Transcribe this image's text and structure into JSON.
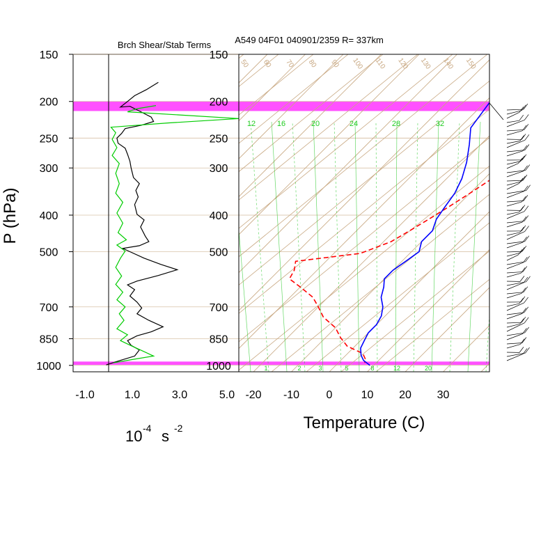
{
  "title": "A549 04F01 040901/2359 R= 337km",
  "left_panel_title": "Brch Shear/Stab Terms",
  "y_axis_label": "P (hPa)",
  "left_x_axis_label": "10",
  "left_x_axis_label_exp": "-4",
  "left_x_axis_label_unit": "s",
  "left_x_axis_label_unit_exp": "-2",
  "right_x_axis_label": "Temperature (C)",
  "colors": {
    "temperature": "#ff0000",
    "dewpoint_or_virtual": "#0000ff",
    "shear": "#000000",
    "stability": "#00cc00",
    "highlight_band": "#ff33ff",
    "skewt_lines": "#c8a882",
    "mixing_ratio": "#33cc33"
  },
  "chart_data": [
    {
      "type": "line",
      "panel": "left",
      "title": "Brch Shear/Stab Terms",
      "xlabel": "10^-4 s^-2",
      "ylabel": "P (hPa)",
      "y_scale": "log",
      "ylim": [
        1040,
        150
      ],
      "xlim": [
        -1.5,
        5.5
      ],
      "x_ticks": [
        "-1.0",
        "1.0",
        "3.0",
        "5.0"
      ],
      "x_tick_values": [
        -1,
        1,
        3,
        5
      ],
      "y_ticks": [
        "150",
        "200",
        "250",
        "300",
        "400",
        "500",
        "700",
        "850",
        "1000"
      ],
      "y_tick_values": [
        150,
        200,
        250,
        300,
        400,
        500,
        700,
        850,
        1000
      ],
      "zero_line": 0,
      "highlight_bands_hpa": [
        [
          200,
          212
        ],
        [
          977,
          997
        ]
      ],
      "series": [
        {
          "key": "shear",
          "color": "#000000",
          "points": [
            [
              2.1,
              178
            ],
            [
              1.6,
              186
            ],
            [
              1.1,
              193
            ],
            [
              0.8,
              200
            ],
            [
              0.5,
              207
            ],
            [
              0.9,
              206
            ],
            [
              1.3,
              212
            ],
            [
              1.8,
              220
            ],
            [
              1.9,
              226
            ],
            [
              1.4,
              231
            ],
            [
              0.7,
              236
            ],
            [
              0.55,
              243
            ],
            [
              0.35,
              250
            ],
            [
              0.4,
              258
            ],
            [
              0.7,
              266
            ],
            [
              0.8,
              276
            ],
            [
              0.9,
              288
            ],
            [
              0.95,
              300
            ],
            [
              1.05,
              318
            ],
            [
              1.3,
              330
            ],
            [
              1.15,
              344
            ],
            [
              1.25,
              358
            ],
            [
              1.1,
              375
            ],
            [
              1.2,
              398
            ],
            [
              1.5,
              412
            ],
            [
              1.35,
              430
            ],
            [
              1.55,
              455
            ],
            [
              1.7,
              470
            ],
            [
              1.3,
              482
            ],
            [
              0.6,
              490
            ],
            [
              0.9,
              500
            ],
            [
              1.5,
              520
            ],
            [
              2.2,
              540
            ],
            [
              2.9,
              558
            ],
            [
              2.1,
              578
            ],
            [
              1.2,
              598
            ],
            [
              0.8,
              612
            ],
            [
              1.1,
              630
            ],
            [
              0.9,
              655
            ],
            [
              1.2,
              680
            ],
            [
              1.4,
              705
            ],
            [
              1.2,
              730
            ],
            [
              1.7,
              760
            ],
            [
              2.3,
              790
            ],
            [
              1.8,
              815
            ],
            [
              1.2,
              835
            ],
            [
              0.8,
              860
            ],
            [
              0.95,
              885
            ],
            [
              1.3,
              910
            ],
            [
              1.1,
              945
            ],
            [
              0.5,
              970
            ],
            [
              -0.1,
              997
            ]
          ]
        },
        {
          "key": "stability",
          "color": "#00cc00",
          "points": [
            [
              2.0,
              205
            ],
            [
              1.2,
              209
            ],
            [
              0.8,
              213
            ],
            [
              5.5,
              222
            ],
            [
              2.5,
              228
            ],
            [
              0.1,
              234
            ],
            [
              0.3,
              242
            ],
            [
              0.15,
              252
            ],
            [
              0.35,
              265
            ],
            [
              0.15,
              278
            ],
            [
              0.45,
              292
            ],
            [
              0.3,
              310
            ],
            [
              0.45,
              330
            ],
            [
              0.3,
              350
            ],
            [
              0.6,
              370
            ],
            [
              0.35,
              395
            ],
            [
              0.6,
              420
            ],
            [
              0.4,
              445
            ],
            [
              0.75,
              465
            ],
            [
              0.35,
              480
            ],
            [
              0.7,
              498
            ],
            [
              0.5,
              520
            ],
            [
              0.3,
              550
            ],
            [
              0.55,
              580
            ],
            [
              0.3,
              610
            ],
            [
              0.6,
              640
            ],
            [
              0.35,
              670
            ],
            [
              0.7,
              700
            ],
            [
              0.45,
              730
            ],
            [
              0.65,
              760
            ],
            [
              0.35,
              800
            ],
            [
              0.8,
              830
            ],
            [
              0.5,
              860
            ],
            [
              1.0,
              890
            ],
            [
              1.5,
              920
            ],
            [
              1.9,
              945
            ],
            [
              1.0,
              965
            ],
            [
              0.2,
              985
            ]
          ]
        }
      ]
    },
    {
      "type": "line",
      "panel": "right",
      "chart_kind": "skew-T log-P",
      "xlabel": "Temperature (C)",
      "ylabel": "P (hPa)",
      "y_scale": "log",
      "ylim": [
        1040,
        150
      ],
      "x_ticks": [
        "-20",
        "-10",
        "0",
        "10",
        "20",
        "30"
      ],
      "x_tick_values": [
        -20,
        -10,
        0,
        10,
        20,
        30
      ],
      "y_ticks": [
        "150",
        "200",
        "250",
        "300",
        "400",
        "500",
        "700",
        "850",
        "1000"
      ],
      "y_tick_values": [
        150,
        200,
        250,
        300,
        400,
        500,
        700,
        850,
        1000
      ],
      "highlight_bands_hpa": [
        [
          200,
          212
        ],
        [
          977,
          997
        ]
      ],
      "mixing_ratio_labels": [
        "12",
        "16",
        "20",
        "24",
        "28",
        "32"
      ],
      "mixing_ratio_label_values": [
        12,
        16,
        20,
        24,
        28,
        32
      ],
      "bottom_mixing_labels": [
        "1",
        "2",
        "3",
        "5",
        "8",
        "12",
        "20"
      ],
      "bottom_mixing_label_values": [
        1,
        2,
        3,
        5,
        8,
        12,
        20
      ],
      "theta_labels": [
        "50",
        "60",
        "70",
        "80",
        "90",
        "100",
        "110",
        "120",
        "130",
        "140",
        "150"
      ],
      "theta_label_values": [
        50,
        60,
        70,
        80,
        90,
        100,
        110,
        120,
        130,
        140,
        150
      ],
      "series": [
        {
          "key": "temperature",
          "color": "#ff0000",
          "dashed": true,
          "points": [
            [
              -16,
              196
            ],
            [
              -13,
              203
            ],
            [
              -11,
              212
            ],
            [
              -10,
              222
            ],
            [
              -8,
              235
            ],
            [
              -6,
              248
            ],
            [
              -6,
              265
            ],
            [
              -7,
              290
            ],
            [
              -8,
              320
            ],
            [
              -10,
              350
            ],
            [
              -12,
              380
            ],
            [
              -14,
              410
            ],
            [
              -16,
              440
            ],
            [
              -18,
              470
            ],
            [
              -23,
              505
            ],
            [
              -38,
              530
            ],
            [
              -36,
              560
            ],
            [
              -35,
              590
            ],
            [
              -30,
              620
            ],
            [
              -24,
              660
            ],
            [
              -20,
              700
            ],
            [
              -16,
              745
            ],
            [
              -10,
              795
            ],
            [
              -6,
              845
            ],
            [
              -2,
              890
            ],
            [
              4,
              930
            ],
            [
              6,
              960
            ],
            [
              7,
              985
            ]
          ]
        },
        {
          "key": "dewpoint_or_virtual",
          "color": "#0000ff",
          "dashed": false,
          "points": [
            [
              -31,
              175
            ],
            [
              -30,
              185
            ],
            [
              -29,
              197
            ],
            [
              -28,
              215
            ],
            [
              -27,
              235
            ],
            [
              -23,
              260
            ],
            [
              -19,
              290
            ],
            [
              -16,
              320
            ],
            [
              -14,
              350
            ],
            [
              -13,
              380
            ],
            [
              -12,
              410
            ],
            [
              -10,
              440
            ],
            [
              -10,
              470
            ],
            [
              -8,
              500
            ],
            [
              -9,
              530
            ],
            [
              -10,
              560
            ],
            [
              -10,
              590
            ],
            [
              -8,
              620
            ],
            [
              -6,
              660
            ],
            [
              -3,
              700
            ],
            [
              -1,
              740
            ],
            [
              0,
              780
            ],
            [
              0,
              820
            ],
            [
              1,
              860
            ],
            [
              2,
              900
            ],
            [
              4,
              940
            ],
            [
              6,
              970
            ],
            [
              9,
              1000
            ]
          ]
        }
      ]
    }
  ]
}
